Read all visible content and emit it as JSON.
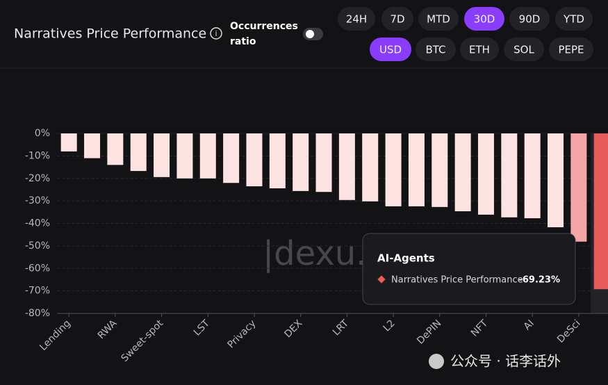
{
  "header": {
    "title": "Narratives Price Performance",
    "toggle_label": [
      "Occurrences",
      "ratio"
    ]
  },
  "controls": {
    "periods": [
      "24H",
      "7D",
      "MTD",
      "30D",
      "90D",
      "YTD"
    ],
    "period_selected": "30D",
    "currencies": [
      "USD",
      "BTC",
      "ETH",
      "SOL",
      "PEPE"
    ],
    "currency_selected": "USD"
  },
  "chart_data": {
    "type": "bar",
    "series_name": "Narratives Price Performance",
    "categories": [
      "Lending",
      null,
      "RWA",
      null,
      "Sweet-spot",
      null,
      "LST",
      null,
      "Privacy",
      null,
      "DEX",
      null,
      "LRT",
      null,
      "L2",
      null,
      "DePIN",
      null,
      "NFT",
      null,
      "AI",
      null,
      "DeSci",
      null
    ],
    "values": [
      -8,
      -11,
      -14,
      -16.7,
      -19.4,
      -20,
      -20,
      -22,
      -23.5,
      -24.4,
      -25.6,
      -26,
      -29.6,
      -30.2,
      -32.4,
      -32.4,
      -32.7,
      -34.6,
      -36.1,
      -37.3,
      -37.7,
      -41.7,
      -48.1,
      -69.23
    ],
    "colors": [
      "#fde2e2",
      "#fde2e2",
      "#fde2e2",
      "#fde2e2",
      "#fde2e2",
      "#fde2e2",
      "#fde2e2",
      "#fde2e2",
      "#fde2e2",
      "#fde2e2",
      "#fde2e2",
      "#fde2e2",
      "#fde2e2",
      "#fde2e2",
      "#fde2e2",
      "#fde2e2",
      "#fde2e2",
      "#fde2e2",
      "#fde2e2",
      "#fde2e2",
      "#fde2e2",
      "#fde2e2",
      "#f4a6a6",
      "#e85c5c"
    ],
    "ylim": [
      -80,
      0
    ],
    "yticks": [
      {
        "value": 0,
        "label": "0%"
      },
      {
        "value": -10,
        "label": "-10%"
      },
      {
        "value": -20,
        "label": "-20%"
      },
      {
        "value": -30,
        "label": "-30%"
      },
      {
        "value": -40,
        "label": "-40%"
      },
      {
        "value": -50,
        "label": "-50%"
      },
      {
        "value": -60,
        "label": "-60%"
      },
      {
        "value": -70,
        "label": "-70%"
      },
      {
        "value": -80,
        "label": "-80%"
      }
    ],
    "grid": true,
    "tooltip": {
      "category": "AI-Agents",
      "label": "Narratives Price Performance",
      "value_label": "-69.23%"
    },
    "watermark": "|dexu.c"
  },
  "footer": {
    "text": "公众号 · 话李话外"
  }
}
